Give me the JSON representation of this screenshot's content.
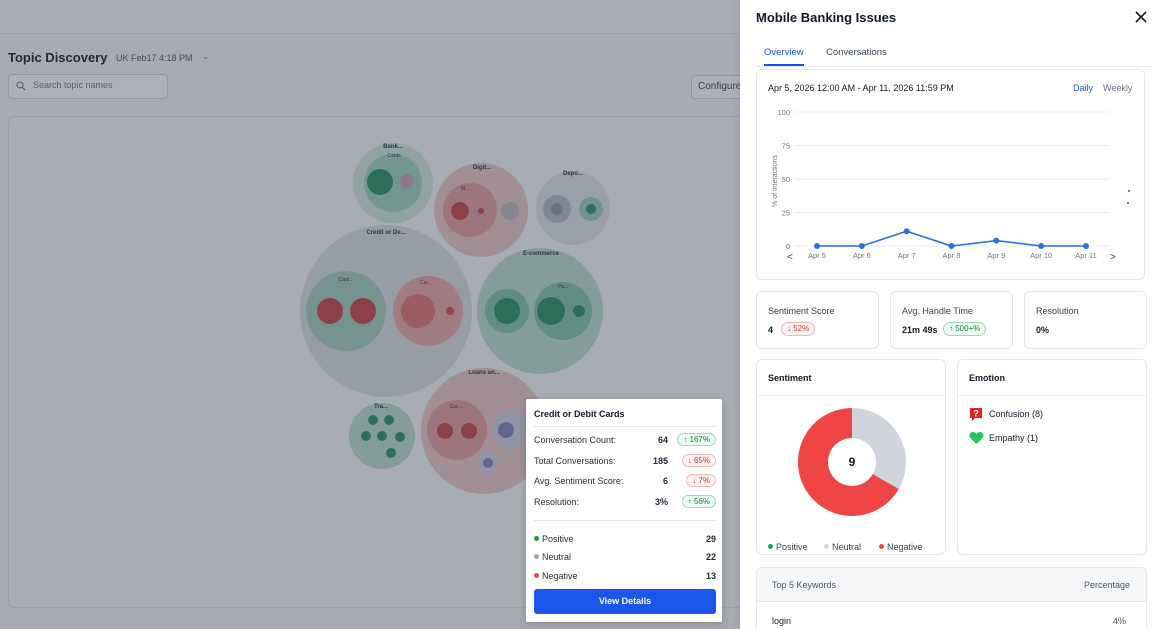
{
  "background": {
    "title": "Topic Discovery",
    "date_filter": "UK Feb17 4:18 PM",
    "search_placeholder": "Search topic names",
    "configure_label": "Configure",
    "bubbles": [
      {
        "label": "Bank...",
        "sub": "Cards"
      },
      {
        "label": "Digit...",
        "sub": "M..."
      },
      {
        "label": "Depo...",
        "sub": ""
      },
      {
        "label": "Credit or De...",
        "sub": "Card..."
      },
      {
        "label": "",
        "sub": "Car..."
      },
      {
        "label": "E-commerce",
        "sub": "Pa..."
      },
      {
        "label": "Tra...",
        "sub": ""
      },
      {
        "label": "Loans an...",
        "sub": "Cus..."
      }
    ]
  },
  "tooltip": {
    "title": "Credit or Debit Cards",
    "stats": [
      {
        "label": "Conversation Count:",
        "value": "64",
        "change": "167%",
        "direction": "up"
      },
      {
        "label": "Total Conversations:",
        "value": "185",
        "change": "65%",
        "direction": "down"
      },
      {
        "label": "Avg. Sentiment Score:",
        "value": "6",
        "change": "7%",
        "direction": "down"
      },
      {
        "label": "Resolution:",
        "value": "3%",
        "change": "56%",
        "direction": "up"
      }
    ],
    "sentiment": [
      {
        "label": "Positive",
        "value": "29",
        "color": "#16a34a"
      },
      {
        "label": "Neutral",
        "value": "22",
        "color": "#9ca3af"
      },
      {
        "label": "Negative",
        "value": "13",
        "color": "#ef4444"
      }
    ],
    "button_label": "View Details"
  },
  "panel": {
    "title": "Mobile Banking Issues",
    "tabs": [
      "Overview",
      "Conversations"
    ],
    "active_tab": "Overview",
    "date_range": "Apr 5, 2026 12:00 AM - Apr 11, 2026 11:59 PM",
    "granularity": [
      "Daily",
      "Weekly"
    ],
    "nav_prev": "<",
    "nav_next": ">",
    "metrics": [
      {
        "label": "Sentiment Score",
        "value": "4",
        "change": "52%",
        "direction": "down"
      },
      {
        "label": "Avg. Handle Time",
        "value": "21m 49s",
        "change": "500+%",
        "direction": "up"
      },
      {
        "label": "Resolution",
        "value": "0%",
        "change": "",
        "direction": ""
      }
    ],
    "sentiment_card": {
      "title": "Sentiment",
      "center_value": "9",
      "legend": [
        {
          "label": "Positive",
          "color": "#16a34a"
        },
        {
          "label": "Neutral",
          "color": "#d1d5db"
        },
        {
          "label": "Negative",
          "color": "#ef4444"
        }
      ]
    },
    "emotion_card": {
      "title": "Emotion",
      "items": [
        {
          "label": "Confusion (8)",
          "icon": "question-icon"
        },
        {
          "label": "Empathy (1)",
          "icon": "green-heart-icon"
        }
      ]
    },
    "keywords": {
      "header_keyword": "Top 5 Keywords",
      "header_percentage": "Percentage",
      "rows": [
        {
          "keyword": "login",
          "percentage": "4%"
        }
      ]
    }
  },
  "chart_data": {
    "type": "line",
    "title": "",
    "xlabel": "",
    "ylabel": "% of interactions",
    "ylim": [
      0,
      100
    ],
    "y_ticks": [
      "0",
      "25",
      "50",
      "75",
      "100"
    ],
    "categories": [
      "Apr 5",
      "Apr 6",
      "Apr 7",
      "Apr 8",
      "Apr 9",
      "Apr 10",
      "Apr 11"
    ],
    "series": [
      {
        "values": [
          0,
          0,
          11,
          0,
          4,
          0,
          0
        ],
        "color": "#2f6fe0"
      }
    ],
    "donut": {
      "center_label": "9",
      "slices": [
        {
          "label": "Positive",
          "value": 0,
          "color": "#16a34a"
        },
        {
          "label": "Neutral",
          "value": 3,
          "color": "#d1d5db"
        },
        {
          "label": "Negative",
          "value": 6,
          "color": "#ef4444"
        }
      ]
    },
    "grid": true,
    "legend": "none"
  }
}
